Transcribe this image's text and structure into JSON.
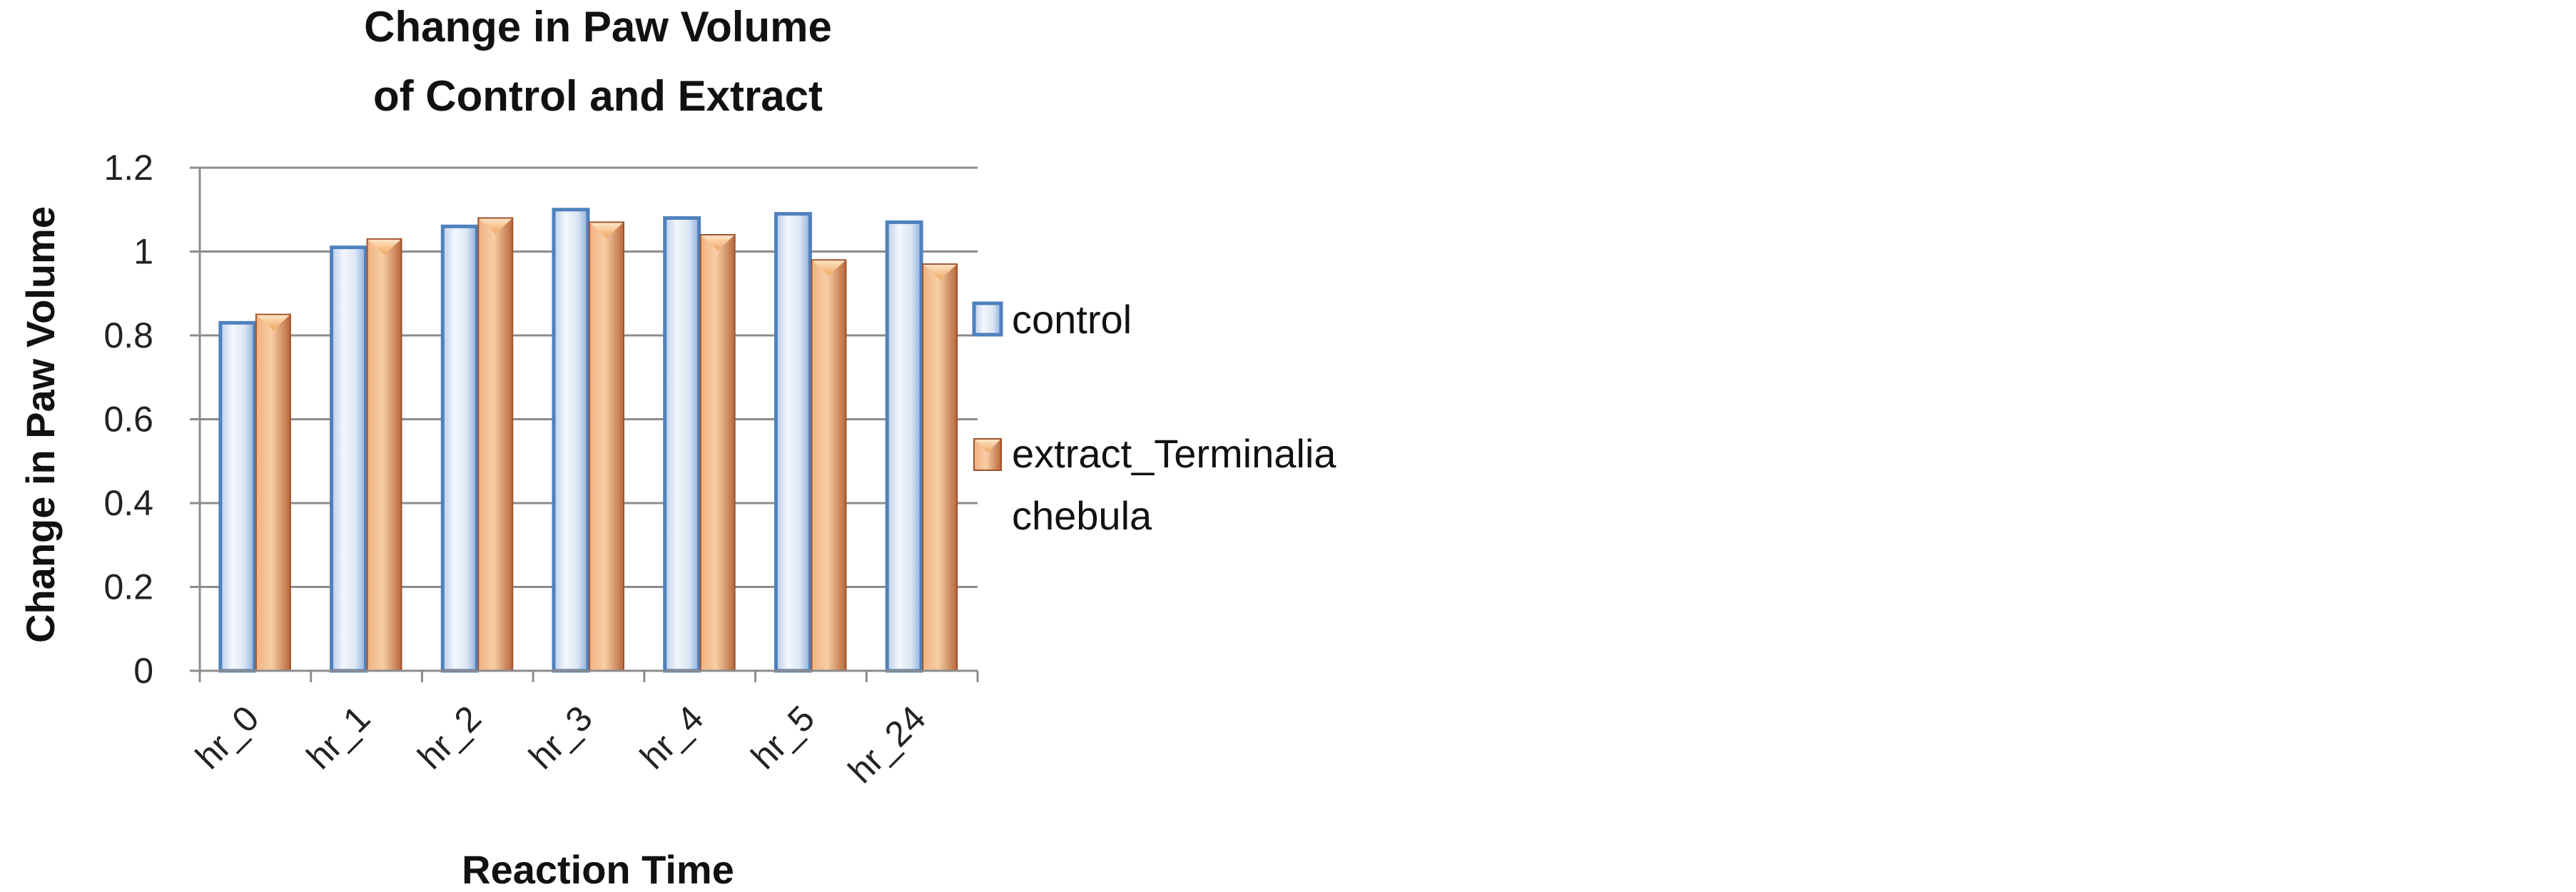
{
  "chart_data": {
    "type": "bar",
    "title_lines": [
      "Change in Paw Volume",
      "of Control and Extract"
    ],
    "xlabel": "Reaction Time",
    "ylabel": "Change in Paw Volume",
    "categories": [
      "hr_0",
      "hr_1",
      "hr_2",
      "hr_3",
      "hr_4",
      "hr_5",
      "hr_24"
    ],
    "series": [
      {
        "name": "control",
        "values": [
          0.83,
          1.01,
          1.06,
          1.1,
          1.08,
          1.09,
          1.07
        ],
        "color": "#4f81bd"
      },
      {
        "name": "extract_Terminalia chebula",
        "values": [
          0.85,
          1.03,
          1.08,
          1.07,
          1.04,
          0.98,
          0.97
        ],
        "color": "#c0784a"
      }
    ],
    "ylim": [
      0,
      1.2
    ],
    "yticks": [
      "0",
      "0.2",
      "0.4",
      "0.6",
      "0.8",
      "1",
      "1.2"
    ],
    "legend_lines": [
      [
        "control"
      ],
      [
        "extract_Terminalia",
        "chebula"
      ]
    ],
    "grid": true,
    "legend_position": "right"
  }
}
